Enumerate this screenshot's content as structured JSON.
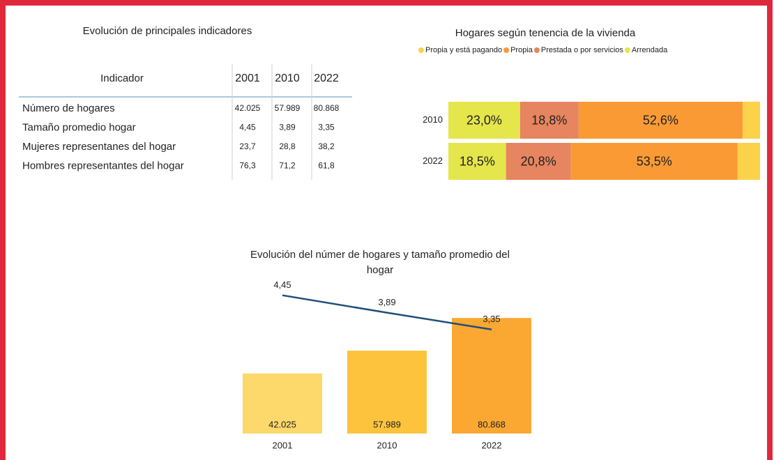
{
  "table": {
    "title": "Evolución de principales indicadores",
    "header": [
      "Indicador",
      "2001",
      "2010",
      "2022"
    ],
    "rows": [
      [
        "Número de hogares",
        "42.025",
        "57.989",
        "80.868"
      ],
      [
        "Tamaño promedio hogar",
        "4,45",
        "3,89",
        "3,35"
      ],
      [
        "Mujeres representanes del hogar",
        "23,7",
        "28,8",
        "38,2"
      ],
      [
        "Hombres representantes del hogar",
        "76,3",
        "71,2",
        "61,8"
      ]
    ]
  },
  "chart_data": [
    {
      "type": "stacked-bar-horizontal",
      "title": "Hogares según tenencia de la vivienda",
      "categories": [
        "2010",
        "2022"
      ],
      "xlim": [
        0,
        100
      ],
      "series": [
        {
          "name": "Propia y está pagando",
          "color": "#fcd24a",
          "values": [
            5.6,
            7.2
          ]
        },
        {
          "name": "Propia",
          "color": "#f99a35",
          "values": [
            52.6,
            53.5
          ],
          "value_labels": [
            "52,6%",
            "53,5%"
          ]
        },
        {
          "name": "Prestada o por servicios",
          "color": "#e6855f",
          "values": [
            18.8,
            20.8
          ],
          "value_labels": [
            "18,8%",
            "20,8%"
          ]
        },
        {
          "name": "Arrendada",
          "color": "#e5e54c",
          "values": [
            23.0,
            18.5
          ],
          "value_labels": [
            "23,0%",
            "18,5%"
          ]
        }
      ],
      "legend": "top"
    },
    {
      "type": "bar-line",
      "title": "Evolución del númer de hogares y tamaño promedio del hogar",
      "categories": [
        "2001",
        "2010",
        "2022"
      ],
      "ylim": [
        0,
        100000
      ],
      "y2lim": [
        0,
        4.6
      ],
      "series": [
        {
          "type": "bar",
          "colors": [
            "#fdd96b",
            "#fdc33c",
            "#fba832"
          ],
          "values": [
            42025,
            57989,
            80868
          ],
          "value_labels": [
            "42.025",
            "57.989",
            "80.868"
          ]
        },
        {
          "type": "line",
          "axis": "y2",
          "color": "#1f4e79",
          "values": [
            4.45,
            3.89,
            3.35
          ],
          "value_labels": [
            "4,45",
            "3,89",
            "3,35"
          ]
        }
      ]
    }
  ]
}
